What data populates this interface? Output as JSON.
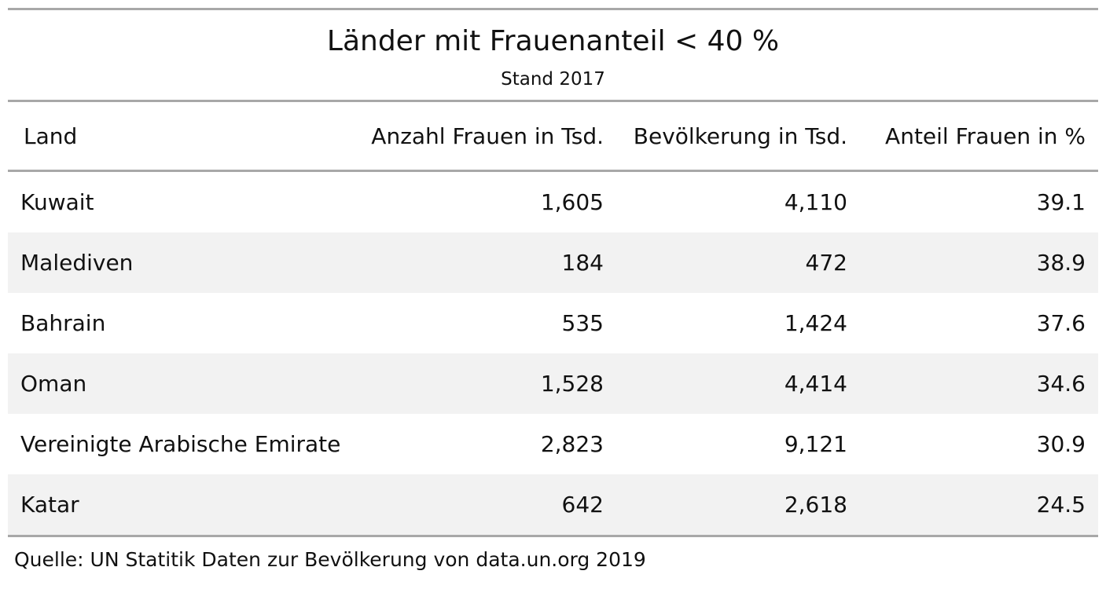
{
  "title": "Länder mit Frauenanteil < 40 %",
  "subtitle": "Stand 2017",
  "source": "Quelle: UN Statitik Daten zur Bevölkerung von data.un.org 2019",
  "columns": [
    "Land",
    "Anzahl Frauen in Tsd.",
    "Bevölkerung in Tsd.",
    "Anteil Frauen in %"
  ],
  "rows": [
    [
      "Kuwait",
      "1,605",
      "4,110",
      "39.1"
    ],
    [
      "Malediven",
      "184",
      "472",
      "38.9"
    ],
    [
      "Bahrain",
      "535",
      "1,424",
      "37.6"
    ],
    [
      "Oman",
      "1,528",
      "4,414",
      "34.6"
    ],
    [
      "Vereinigte Arabische Emirate",
      "2,823",
      "9,121",
      "30.9"
    ],
    [
      "Katar",
      "642",
      "2,618",
      "24.5"
    ]
  ],
  "colors": {
    "rule": "#a8a8a8",
    "stripe": "#f2f2f2",
    "text": "#111111"
  },
  "chart_data": {
    "type": "table",
    "title": "Länder mit Frauenanteil < 40 %",
    "subtitle": "Stand 2017",
    "columns": [
      "Land",
      "Anzahl Frauen in Tsd.",
      "Bevölkerung in Tsd.",
      "Anteil Frauen in %"
    ],
    "categories": [
      "Kuwait",
      "Malediven",
      "Bahrain",
      "Oman",
      "Vereinigte Arabische Emirate",
      "Katar"
    ],
    "series": [
      {
        "name": "Anzahl Frauen in Tsd.",
        "values": [
          1605,
          184,
          535,
          1528,
          2823,
          642
        ]
      },
      {
        "name": "Bevölkerung in Tsd.",
        "values": [
          4110,
          472,
          1424,
          4414,
          9121,
          2618
        ]
      },
      {
        "name": "Anteil Frauen in %",
        "values": [
          39.1,
          38.9,
          37.6,
          34.6,
          30.9,
          24.5
        ]
      }
    ],
    "source": "Quelle: UN Statitik Daten zur Bevölkerung von data.un.org 2019"
  }
}
